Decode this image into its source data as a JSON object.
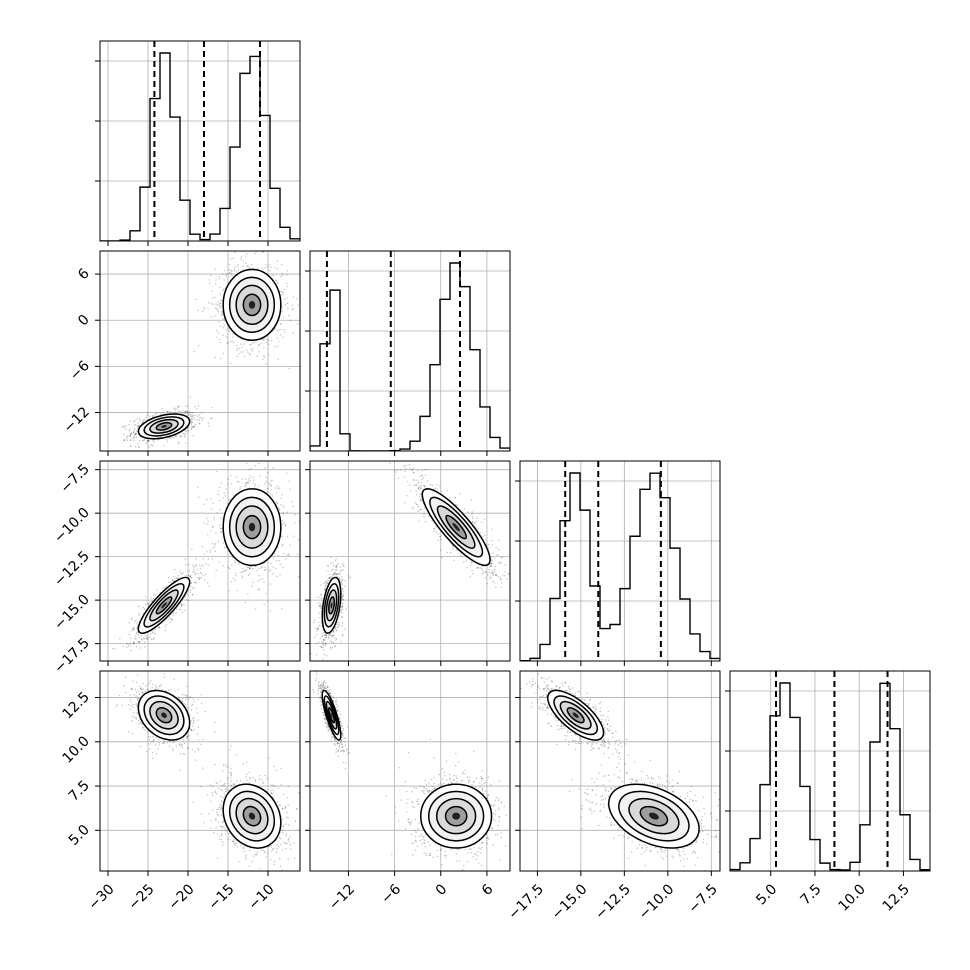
{
  "chart_data": {
    "type": "corner",
    "layout": "lower-triangle 4x4: histograms on diagonal, 2D density contours + scatter below",
    "grid": true,
    "quantile_lines": "dashed vertical lines on each histogram",
    "parameters": [
      {
        "range": [
          -31,
          -6
        ],
        "ticks": [
          -30,
          -25,
          -20,
          -15,
          -10
        ],
        "tick_labels": [
          "−30",
          "−25",
          "−20",
          "−15",
          "−10"
        ],
        "quantiles": [
          -24.2,
          -18.0,
          -11.0
        ],
        "modes": [
          {
            "mu": -23,
            "sigma": 1.5,
            "w": 0.5
          },
          {
            "mu": -12,
            "sigma": 1.8,
            "w": 0.5
          }
        ]
      },
      {
        "range": [
          -17,
          9
        ],
        "ticks": [
          -12,
          -6,
          0,
          6
        ],
        "tick_labels": [
          "−12",
          "−6",
          "0",
          "6"
        ],
        "quantiles": [
          -14.8,
          -6.5,
          2.5
        ],
        "modes": [
          {
            "mu": -14.2,
            "sigma": 0.8,
            "w": 0.5
          },
          {
            "mu": 2.0,
            "sigma": 2.2,
            "w": 0.5
          }
        ]
      },
      {
        "range": [
          -18.5,
          -7.0
        ],
        "ticks": [
          -17.5,
          -15.0,
          -12.5,
          -10.0,
          -7.5
        ],
        "tick_labels": [
          "−17.5",
          "−15.0",
          "−12.5",
          "−10.0",
          "−7.5"
        ],
        "quantiles": [
          -15.9,
          -14.0,
          -10.4
        ],
        "modes": [
          {
            "mu": -15.3,
            "sigma": 0.8,
            "w": 0.5
          },
          {
            "mu": -10.8,
            "sigma": 1.2,
            "w": 0.5
          }
        ]
      },
      {
        "range": [
          2.7,
          14.0
        ],
        "ticks": [
          5.0,
          7.5,
          10.0,
          12.5
        ],
        "tick_labels": [
          "5.0",
          "7.5",
          "10.0",
          "12.5"
        ],
        "quantiles": [
          5.3,
          8.6,
          11.6
        ],
        "modes": [
          {
            "mu": 5.8,
            "sigma": 0.9,
            "w": 0.5
          },
          {
            "mu": 11.5,
            "sigma": 0.7,
            "w": 0.5
          }
        ]
      }
    ],
    "clusters_2d": [
      {
        "pair": [
          1,
          0
        ],
        "points": [
          {
            "mean": [
              -23.0,
              -13.8
            ],
            "sd": [
              1.6,
              0.8
            ],
            "rho": 0.4
          },
          {
            "mean": [
              -12.0,
              2.0
            ],
            "sd": [
              1.8,
              2.3
            ],
            "rho": 0.0
          }
        ]
      },
      {
        "pair": [
          2,
          0
        ],
        "points": [
          {
            "mean": [
              -23.0,
              -15.3
            ],
            "sd": [
              1.6,
              0.8
            ],
            "rho": 0.85
          },
          {
            "mean": [
              -12.0,
              -10.8
            ],
            "sd": [
              1.8,
              1.1
            ],
            "rho": 0.0
          }
        ]
      },
      {
        "pair": [
          2,
          1
        ],
        "points": [
          {
            "mean": [
              -14.2,
              -15.3
            ],
            "sd": [
              0.6,
              0.8
            ],
            "rho": 0.4
          },
          {
            "mean": [
              2.0,
              -10.8
            ],
            "sd": [
              2.2,
              1.1
            ],
            "rho": -0.85
          }
        ]
      },
      {
        "pair": [
          3,
          0
        ],
        "points": [
          {
            "mean": [
              -23.0,
              11.5
            ],
            "sd": [
              1.6,
              0.7
            ],
            "rho": -0.3
          },
          {
            "mean": [
              -12.0,
              5.8
            ],
            "sd": [
              1.8,
              0.9
            ],
            "rho": -0.2
          }
        ]
      },
      {
        "pair": [
          3,
          1
        ],
        "points": [
          {
            "mean": [
              -14.2,
              11.5
            ],
            "sd": [
              0.6,
              0.7
            ],
            "rho": -0.8
          },
          {
            "mean": [
              2.0,
              5.8
            ],
            "sd": [
              2.3,
              0.9
            ],
            "rho": 0.0
          }
        ]
      },
      {
        "pair": [
          3,
          2
        ],
        "points": [
          {
            "mean": [
              -15.3,
              11.5
            ],
            "sd": [
              0.8,
              0.7
            ],
            "rho": -0.7
          },
          {
            "mean": [
              -10.8,
              5.8
            ],
            "sd": [
              1.3,
              0.9
            ],
            "rho": -0.4
          }
        ]
      }
    ],
    "histogram_max": {
      "p0": 0.135,
      "p1": 0.3,
      "p2": 0.27,
      "p3": 0.33
    }
  }
}
